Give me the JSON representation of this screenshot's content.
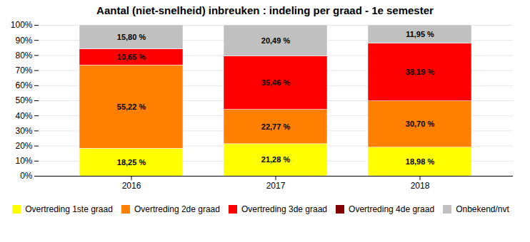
{
  "chart_data": {
    "type": "bar",
    "title": "Aantal (niet-snelheid) inbreuken : indeling per graad - 1e semester",
    "categories": [
      "2016",
      "2017",
      "2018"
    ],
    "series": [
      {
        "name": "Overtreding 1ste graad",
        "color": "#FFFF00",
        "values": [
          18.25,
          21.28,
          18.98
        ],
        "value_labels": [
          "18,25 %",
          "21,28 %",
          "18,98 %"
        ]
      },
      {
        "name": "Overtreding 2de graad",
        "color": "#FF8000",
        "values": [
          55.22,
          22.77,
          30.7
        ],
        "value_labels": [
          "55,22 %",
          "22,77 %",
          "30,70 %"
        ]
      },
      {
        "name": "Overtreding 3de graad",
        "color": "#FF0000",
        "values": [
          10.65,
          35.46,
          38.19
        ],
        "value_labels": [
          "10,65 %",
          "35,46 %",
          "38,19 %"
        ]
      },
      {
        "name": "Overtreding 4de graad",
        "color": "#800000",
        "values": [
          0.08,
          0.0,
          0.18
        ],
        "value_labels": [
          null,
          null,
          null
        ]
      },
      {
        "name": "Onbekend/nvt",
        "color": "#C0C0C0",
        "values": [
          15.8,
          20.49,
          11.95
        ],
        "value_labels": [
          "15,80 %",
          "20,49 %",
          "11,95 %"
        ]
      }
    ],
    "stacked": true,
    "data_labels": true,
    "ylim": [
      0,
      100
    ],
    "yticks": [
      {
        "value": 0,
        "label": "0%"
      },
      {
        "value": 10,
        "label": "10%"
      },
      {
        "value": 20,
        "label": "20%"
      },
      {
        "value": 30,
        "label": "30%"
      },
      {
        "value": 40,
        "label": "40%"
      },
      {
        "value": 50,
        "label": "50%"
      },
      {
        "value": 60,
        "label": "60%"
      },
      {
        "value": 70,
        "label": "70%"
      },
      {
        "value": 80,
        "label": "80%"
      },
      {
        "value": 90,
        "label": "90%"
      },
      {
        "value": 100,
        "label": "100%"
      }
    ],
    "grid": true,
    "legend": "bottom"
  }
}
